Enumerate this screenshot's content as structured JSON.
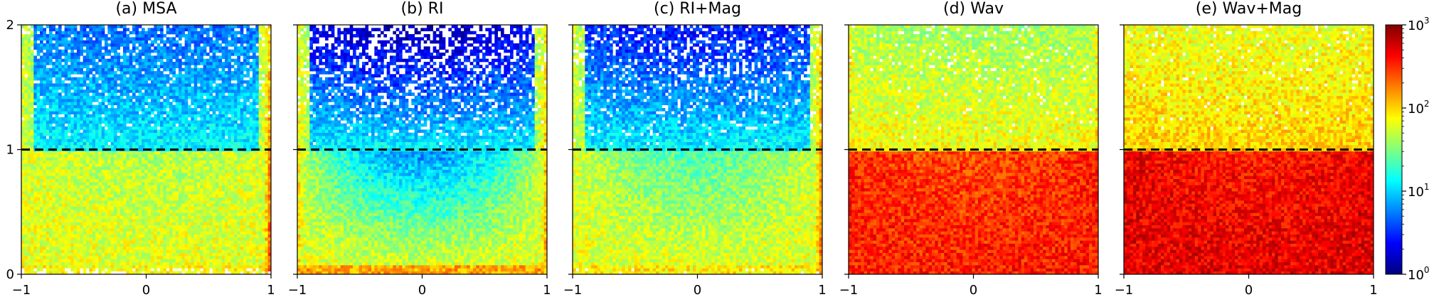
{
  "chart_data": {
    "type": "heatmap",
    "panels": [
      {
        "title": "(a) MSA",
        "style": {
          "coreOuter": 0.6,
          "coreInner": 0.55,
          "topBias": 0.25,
          "sparsity": 0.18,
          "rightEdge": 2.9,
          "leftEdge": 2.2,
          "bottomRow": 1.6,
          "bottomSparse": 0.35
        }
      },
      {
        "title": "(b) RI",
        "style": {
          "coreOuter": 0.6,
          "coreInner": 0.25,
          "topBias": 0.55,
          "sparsity": 0.45,
          "rightEdge": 2.6,
          "leftEdge": 2.4,
          "bottomRow": 2.1,
          "bottomSparse": 0.0
        }
      },
      {
        "title": "(c) RI+Mag",
        "style": {
          "coreOuter": 0.6,
          "coreInner": 0.45,
          "topBias": 0.4,
          "sparsity": 0.3,
          "rightEdge": 2.8,
          "leftEdge": 2.2,
          "bottomRow": 1.7,
          "bottomSparse": 0.05
        }
      },
      {
        "title": "(d) Wav",
        "style": {
          "coreOuter": 0.85,
          "coreInner": 0.8,
          "topBias": 0.15,
          "sparsity": 0.08,
          "rightEdge": 2.5,
          "leftEdge": 2.5,
          "bottomRow": 1.3,
          "bottomSparse": 0.0
        }
      },
      {
        "title": "(e) Wav+Mag",
        "style": {
          "coreOuter": 0.9,
          "coreInner": 0.85,
          "topBias": 0.12,
          "sparsity": 0.06,
          "rightEdge": 2.4,
          "leftEdge": 2.4,
          "bottomRow": 1.2,
          "bottomSparse": 0.0
        }
      }
    ],
    "x_range": [
      -1,
      1
    ],
    "y_range": [
      0,
      2
    ],
    "x_ticks": [
      "−1",
      "0",
      "1"
    ],
    "y_ticks": [
      "0",
      "1",
      "2"
    ],
    "reference_line": {
      "y": 1,
      "style": "dashed",
      "color": "#000000"
    },
    "colorbar": {
      "scale": "log",
      "range": [
        1,
        1000
      ],
      "ticks": [
        {
          "base": "10",
          "exp": "0"
        },
        {
          "base": "10",
          "exp": "1"
        },
        {
          "base": "10",
          "exp": "2"
        },
        {
          "base": "10",
          "exp": "3"
        }
      ],
      "colormap": "jet"
    },
    "grid": false,
    "legend": "none"
  }
}
